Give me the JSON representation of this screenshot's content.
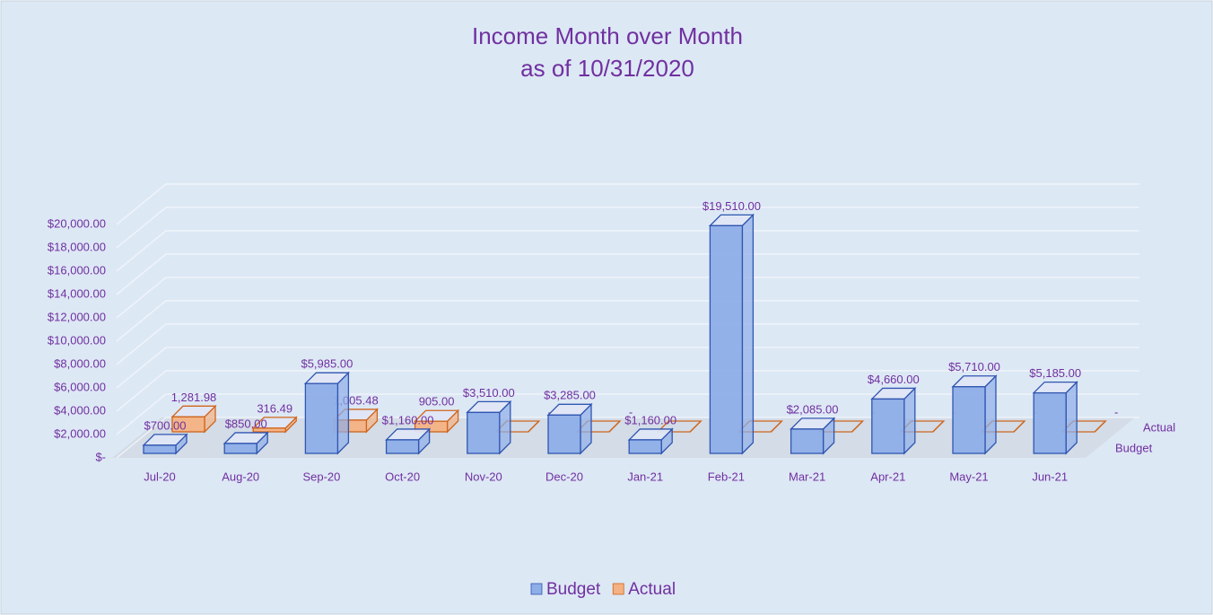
{
  "chart_data": {
    "type": "bar3d",
    "title": "Income Month over Month",
    "subtitle": "as of 10/31/2020",
    "categories": [
      "Jul-20",
      "Aug-20",
      "Sep-20",
      "Oct-20",
      "Nov-20",
      "Dec-20",
      "Jan-21",
      "Feb-21",
      "Mar-21",
      "Apr-21",
      "May-21",
      "Jun-21"
    ],
    "series": [
      {
        "name": "Budget",
        "color": "#8eaee8",
        "edge": "#2f55b0",
        "values": [
          700,
          850,
          5985,
          1160,
          3510,
          3285,
          1160,
          19510,
          2085,
          4660,
          5710,
          5185
        ],
        "value_labels": [
          "$700.00",
          "$850.00",
          "$5,985.00",
          "$1,160.00",
          "$3,510.00",
          "$3,285.00",
          "$1,160.00",
          "$19,510.00",
          "$2,085.00",
          "$4,660.00",
          "$5,710.00",
          "$5,185.00"
        ]
      },
      {
        "name": "Actual",
        "color": "#f4b183",
        "edge": "#d0651c",
        "values": [
          1281.98,
          316.49,
          1005.48,
          905,
          0,
          0,
          0,
          0,
          0,
          0,
          0,
          0
        ],
        "value_labels": [
          "1,281.98",
          "316.49",
          "1,005.48",
          "905.00",
          "-",
          "-",
          "-",
          "-",
          "-",
          "-",
          "-",
          "-"
        ]
      }
    ],
    "ylim": [
      0,
      20000
    ],
    "yticks": [
      {
        "value": 0,
        "label": "$-"
      },
      {
        "value": 2000,
        "label": "$2,000.00"
      },
      {
        "value": 4000,
        "label": "$4,000.00"
      },
      {
        "value": 6000,
        "label": "$6,000.00"
      },
      {
        "value": 8000,
        "label": "$8,000.00"
      },
      {
        "value": 10000,
        "label": "$10,000.00"
      },
      {
        "value": 12000,
        "label": "$12,000.00"
      },
      {
        "value": 14000,
        "label": "$14,000.00"
      },
      {
        "value": 16000,
        "label": "$16,000.00"
      },
      {
        "value": 18000,
        "label": "$18,000.00"
      },
      {
        "value": 20000,
        "label": "$20,000.00"
      }
    ],
    "grid": true,
    "legend": "bottom"
  }
}
